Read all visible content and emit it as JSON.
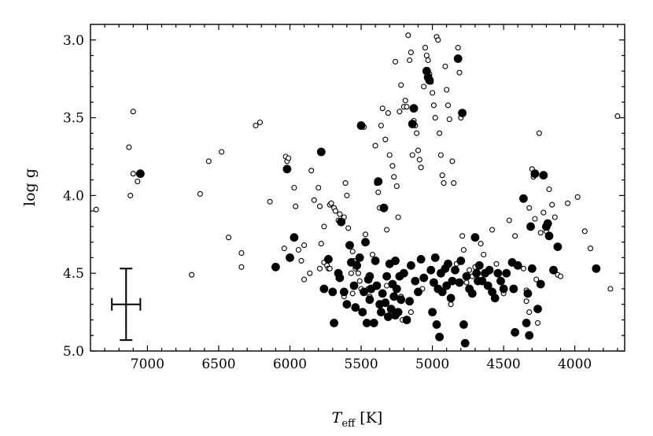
{
  "chart_data": {
    "type": "scatter",
    "title": "",
    "xlabel": {
      "symbol": "T",
      "subscript": "eff",
      "unit": "[K]"
    },
    "ylabel": "log g",
    "xlim": [
      7400,
      3650
    ],
    "ylim": [
      5.0,
      2.9
    ],
    "x_inverted": true,
    "y_inverted": true,
    "xticks": [
      7000,
      6500,
      6000,
      5500,
      5000,
      4500,
      4000
    ],
    "xtick_labels": [
      "7000",
      "6500",
      "6000",
      "5500",
      "5000",
      "4500",
      "4000"
    ],
    "yticks": [
      3.0,
      3.5,
      4.0,
      4.5,
      5.0
    ],
    "ytick_labels": [
      "3.0",
      "3.5",
      "4.0",
      "4.5",
      "5.0"
    ],
    "minor_ticks": true,
    "grid": false,
    "legend": "none",
    "colors": {
      "filled": "#000000",
      "open_fill": "#ffffff",
      "edge": "#000000"
    },
    "error_bar": {
      "x": 7150,
      "y": 4.7,
      "x_err": 100,
      "y_err": 0.23
    },
    "series": [
      {
        "marker": "open-circle",
        "points": [
          [
            7360,
            4.09
          ],
          [
            7100,
            3.46
          ],
          [
            7130,
            3.69
          ],
          [
            7100,
            3.86
          ],
          [
            7070,
            3.91
          ],
          [
            7120,
            4.0
          ],
          [
            6630,
            3.99
          ],
          [
            6570,
            3.78
          ],
          [
            6480,
            3.72
          ],
          [
            6430,
            4.27
          ],
          [
            6340,
            4.37
          ],
          [
            6340,
            4.46
          ],
          [
            6240,
            3.55
          ],
          [
            6210,
            3.53
          ],
          [
            6140,
            4.04
          ],
          [
            6690,
            4.51
          ],
          [
            6040,
            4.34
          ],
          [
            6030,
            3.75
          ],
          [
            6020,
            3.78
          ],
          [
            6010,
            3.76
          ],
          [
            5970,
            3.95
          ],
          [
            5960,
            4.07
          ],
          [
            5940,
            4.35
          ],
          [
            5920,
            4.42
          ],
          [
            5900,
            4.54
          ],
          [
            5860,
            4.5
          ],
          [
            5850,
            3.84
          ],
          [
            5830,
            4.03
          ],
          [
            5800,
            3.95
          ],
          [
            5790,
            4.07
          ],
          [
            5780,
            4.31
          ],
          [
            5760,
            4.2
          ],
          [
            5760,
            4.43
          ],
          [
            5740,
            4.45
          ],
          [
            5730,
            4.47
          ],
          [
            5720,
            4.47
          ],
          [
            5720,
            4.06
          ],
          [
            5710,
            4.05
          ],
          [
            5690,
            4.08
          ],
          [
            5680,
            4.1
          ],
          [
            5660,
            4.16
          ],
          [
            5650,
            4.12
          ],
          [
            5640,
            4.18
          ],
          [
            5620,
            4.14
          ],
          [
            5610,
            3.92
          ],
          [
            5600,
            4.0
          ],
          [
            5590,
            4.21
          ],
          [
            5570,
            4.5
          ],
          [
            5560,
            4.36
          ],
          [
            5550,
            4.42
          ],
          [
            5540,
            4.47
          ],
          [
            5520,
            4.5
          ],
          [
            5510,
            4.55
          ],
          [
            5500,
            4.6
          ],
          [
            5490,
            4.62
          ],
          [
            5480,
            3.56
          ],
          [
            5470,
            4.25
          ],
          [
            5460,
            4.3
          ],
          [
            5450,
            4.6
          ],
          [
            5440,
            4.65
          ],
          [
            5420,
            4.38
          ],
          [
            5400,
            3.68
          ],
          [
            5390,
            3.92
          ],
          [
            5380,
            3.98
          ],
          [
            5370,
            4.08
          ],
          [
            5360,
            3.55
          ],
          [
            5350,
            3.44
          ],
          [
            5340,
            4.09
          ],
          [
            5330,
            3.64
          ],
          [
            5320,
            4.22
          ],
          [
            5310,
            3.47
          ],
          [
            5300,
            3.74
          ],
          [
            5280,
            3.81
          ],
          [
            5270,
            3.88
          ],
          [
            5260,
            3.14
          ],
          [
            5250,
            3.94
          ],
          [
            5240,
            4.14
          ],
          [
            5230,
            3.46
          ],
          [
            5220,
            3.29
          ],
          [
            5210,
            4.8
          ],
          [
            5200,
            3.43
          ],
          [
            5190,
            3.39
          ],
          [
            5180,
            3.43
          ],
          [
            5170,
            2.97
          ],
          [
            5160,
            3.13
          ],
          [
            5150,
            3.08
          ],
          [
            5140,
            3.74
          ],
          [
            5130,
            3.52
          ],
          [
            5120,
            3.55
          ],
          [
            5110,
            3.6
          ],
          [
            5100,
            3.71
          ],
          [
            5090,
            3.77
          ],
          [
            5080,
            3.82
          ],
          [
            5070,
            4.6
          ],
          [
            5060,
            3.3
          ],
          [
            5050,
            3.05
          ],
          [
            5040,
            3.1
          ],
          [
            5030,
            3.13
          ],
          [
            5020,
            3.22
          ],
          [
            5010,
            3.27
          ],
          [
            5000,
            3.34
          ],
          [
            4990,
            3.42
          ],
          [
            4980,
            3.5
          ],
          [
            4970,
            2.98
          ],
          [
            4960,
            3.0
          ],
          [
            4950,
            3.6
          ],
          [
            4940,
            3.74
          ],
          [
            4930,
            3.87
          ],
          [
            4920,
            3.92
          ],
          [
            4910,
            3.17
          ],
          [
            4900,
            3.32
          ],
          [
            4890,
            3.42
          ],
          [
            4880,
            3.51
          ],
          [
            4870,
            4.7
          ],
          [
            4860,
            3.78
          ],
          [
            4850,
            3.92
          ],
          [
            4830,
            4.44
          ],
          [
            4820,
            3.05
          ],
          [
            4810,
            3.21
          ],
          [
            4800,
            3.5
          ],
          [
            4790,
            4.26
          ],
          [
            4780,
            4.35
          ],
          [
            4760,
            4.56
          ],
          [
            4740,
            4.48
          ],
          [
            4720,
            4.52
          ],
          [
            4700,
            4.46
          ],
          [
            4680,
            4.55
          ],
          [
            4660,
            4.31
          ],
          [
            4640,
            4.38
          ],
          [
            4620,
            4.5
          ],
          [
            4600,
            4.58
          ],
          [
            4580,
            4.22
          ],
          [
            4550,
            4.44
          ],
          [
            4530,
            4.55
          ],
          [
            4500,
            4.63
          ],
          [
            4460,
            4.16
          ],
          [
            4420,
            4.26
          ],
          [
            4360,
            4.47
          ],
          [
            4340,
            4.61
          ],
          [
            4320,
            4.08
          ],
          [
            4300,
            3.83
          ],
          [
            4290,
            3.88
          ],
          [
            4280,
            4.15
          ],
          [
            4270,
            4.54
          ],
          [
            4260,
            4.82
          ],
          [
            4250,
            3.6
          ],
          [
            4240,
            4.24
          ],
          [
            4220,
            4.11
          ],
          [
            4200,
            4.23
          ],
          [
            4180,
            3.96
          ],
          [
            4160,
            4.06
          ],
          [
            4140,
            4.14
          ],
          [
            4120,
            4.51
          ],
          [
            4100,
            4.52
          ],
          [
            4050,
            4.05
          ],
          [
            3980,
            4.01
          ],
          [
            3930,
            4.23
          ],
          [
            3700,
            3.49
          ],
          [
            3890,
            4.34
          ],
          [
            3750,
            4.6
          ],
          [
            5900,
            4.32
          ],
          [
            5790,
            4.47
          ],
          [
            5560,
            4.63
          ],
          [
            5620,
            4.65
          ],
          [
            4340,
            4.68
          ],
          [
            4320,
            4.75
          ],
          [
            5150,
            4.75
          ],
          [
            5220,
            4.65
          ],
          [
            5320,
            4.58
          ]
        ]
      },
      {
        "marker": "filled-circle",
        "points": [
          [
            7050,
            3.86
          ],
          [
            6100,
            4.46
          ],
          [
            6020,
            3.83
          ],
          [
            6000,
            4.4
          ],
          [
            5970,
            4.27
          ],
          [
            5780,
            3.72
          ],
          [
            5760,
            4.6
          ],
          [
            5730,
            4.41
          ],
          [
            5700,
            4.62
          ],
          [
            5690,
            4.82
          ],
          [
            5660,
            4.5
          ],
          [
            5640,
            4.17
          ],
          [
            5620,
            4.62
          ],
          [
            5600,
            4.7
          ],
          [
            5580,
            4.32
          ],
          [
            5570,
            4.43
          ],
          [
            5550,
            4.58
          ],
          [
            5530,
            4.45
          ],
          [
            5510,
            4.4
          ],
          [
            5500,
            3.55
          ],
          [
            5490,
            4.75
          ],
          [
            5480,
            4.62
          ],
          [
            5470,
            4.3
          ],
          [
            5460,
            4.82
          ],
          [
            5450,
            4.54
          ],
          [
            5440,
            4.67
          ],
          [
            5430,
            4.6
          ],
          [
            5410,
            4.82
          ],
          [
            5400,
            4.42
          ],
          [
            5390,
            4.58
          ],
          [
            5380,
            3.91
          ],
          [
            5370,
            4.7
          ],
          [
            5360,
            4.75
          ],
          [
            5350,
            4.63
          ],
          [
            5340,
            4.08
          ],
          [
            5330,
            4.69
          ],
          [
            5320,
            4.52
          ],
          [
            5310,
            4.78
          ],
          [
            5300,
            4.44
          ],
          [
            5290,
            4.73
          ],
          [
            5280,
            4.57
          ],
          [
            5270,
            4.65
          ],
          [
            5260,
            4.42
          ],
          [
            5250,
            4.6
          ],
          [
            5240,
            4.75
          ],
          [
            5230,
            4.52
          ],
          [
            5220,
            4.67
          ],
          [
            5200,
            4.5
          ],
          [
            5180,
            4.8
          ],
          [
            5160,
            4.68
          ],
          [
            5150,
            4.45
          ],
          [
            5140,
            3.54
          ],
          [
            5130,
            3.44
          ],
          [
            5120,
            4.55
          ],
          [
            5100,
            4.62
          ],
          [
            5080,
            4.41
          ],
          [
            5060,
            4.53
          ],
          [
            5040,
            3.2
          ],
          [
            5030,
            3.24
          ],
          [
            5020,
            3.26
          ],
          [
            5010,
            4.48
          ],
          [
            5000,
            4.75
          ],
          [
            4990,
            4.56
          ],
          [
            4980,
            4.4
          ],
          [
            4970,
            4.83
          ],
          [
            4960,
            4.6
          ],
          [
            4950,
            4.91
          ],
          [
            4940,
            4.5
          ],
          [
            4930,
            4.62
          ],
          [
            4910,
            4.47
          ],
          [
            4900,
            4.58
          ],
          [
            4890,
            4.44
          ],
          [
            4870,
            4.66
          ],
          [
            4860,
            4.55
          ],
          [
            4840,
            4.48
          ],
          [
            4820,
            3.12
          ],
          [
            4810,
            4.56
          ],
          [
            4800,
            4.42
          ],
          [
            4790,
            3.47
          ],
          [
            4780,
            4.83
          ],
          [
            4770,
            4.95
          ],
          [
            4760,
            4.52
          ],
          [
            4740,
            4.6
          ],
          [
            4720,
            4.63
          ],
          [
            4700,
            4.27
          ],
          [
            4690,
            4.5
          ],
          [
            4680,
            4.55
          ],
          [
            4670,
            4.45
          ],
          [
            4650,
            4.55
          ],
          [
            4630,
            4.5
          ],
          [
            4610,
            4.58
          ],
          [
            4600,
            4.48
          ],
          [
            4580,
            4.62
          ],
          [
            4560,
            4.66
          ],
          [
            4540,
            4.5
          ],
          [
            4520,
            4.55
          ],
          [
            4500,
            4.6
          ],
          [
            4480,
            4.5
          ],
          [
            4440,
            4.43
          ],
          [
            4430,
            4.6
          ],
          [
            4420,
            4.88
          ],
          [
            4400,
            4.45
          ],
          [
            4360,
            4.02
          ],
          [
            4340,
            4.82
          ],
          [
            4330,
            4.63
          ],
          [
            4320,
            4.9
          ],
          [
            4310,
            4.2
          ],
          [
            4300,
            4.47
          ],
          [
            4280,
            3.86
          ],
          [
            4260,
            4.73
          ],
          [
            4240,
            4.57
          ],
          [
            4220,
            3.87
          ],
          [
            4200,
            4.2
          ],
          [
            4190,
            4.18
          ],
          [
            4180,
            4.26
          ],
          [
            4150,
            4.48
          ],
          [
            4120,
            4.33
          ],
          [
            3850,
            4.47
          ],
          [
            5650,
            4.53
          ],
          [
            5540,
            4.72
          ],
          [
            5440,
            4.52
          ],
          [
            5260,
            4.77
          ]
        ]
      }
    ]
  }
}
